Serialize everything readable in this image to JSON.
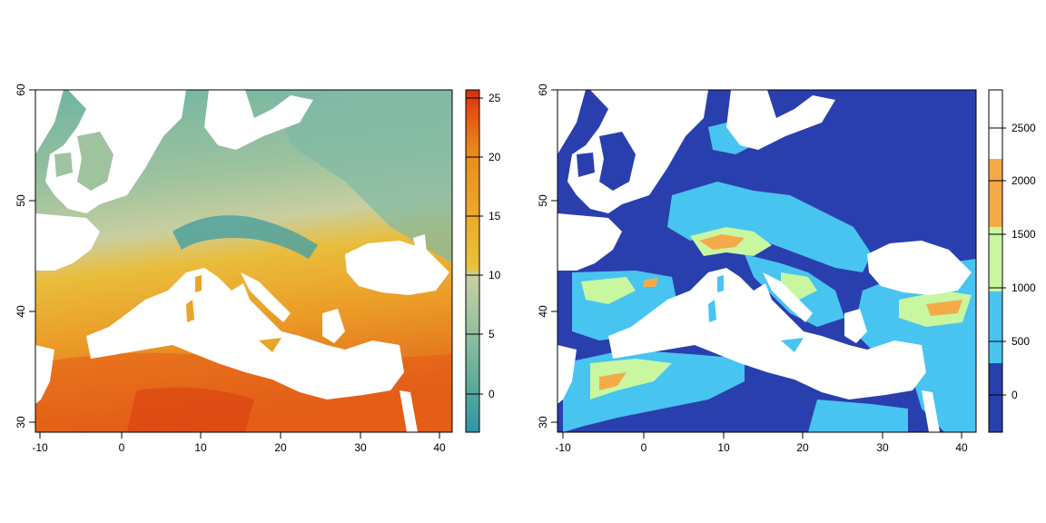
{
  "map_left": {
    "x_ticks": [
      "-10",
      "0",
      "10",
      "20",
      "30",
      "40"
    ],
    "y_ticks": [
      "30",
      "40",
      "50",
      "60"
    ],
    "legend": {
      "ticks": [
        "0",
        "5",
        "10",
        "15",
        "20",
        "25"
      ],
      "stops": [
        "#2f94a8",
        "#5cab9b",
        "#9fc4a0",
        "#c9d0a2",
        "#eac23a",
        "#eda42a",
        "#e98a1d",
        "#e2500f",
        "#d42d0e"
      ]
    }
  },
  "map_right": {
    "x_ticks": [
      "-10",
      "0",
      "10",
      "20",
      "30",
      "40"
    ],
    "y_ticks": [
      "30",
      "40",
      "50",
      "60"
    ],
    "legend": {
      "ticks": [
        "0",
        "500",
        "1000",
        "1500",
        "2000",
        "2500"
      ],
      "bands": [
        "#2a3fae",
        "#48c4f0",
        "#c8f7a0",
        "#f5aa4a",
        "#ffffff"
      ]
    }
  },
  "colors": {
    "sea": "#ffffff",
    "frame": "#000000"
  }
}
